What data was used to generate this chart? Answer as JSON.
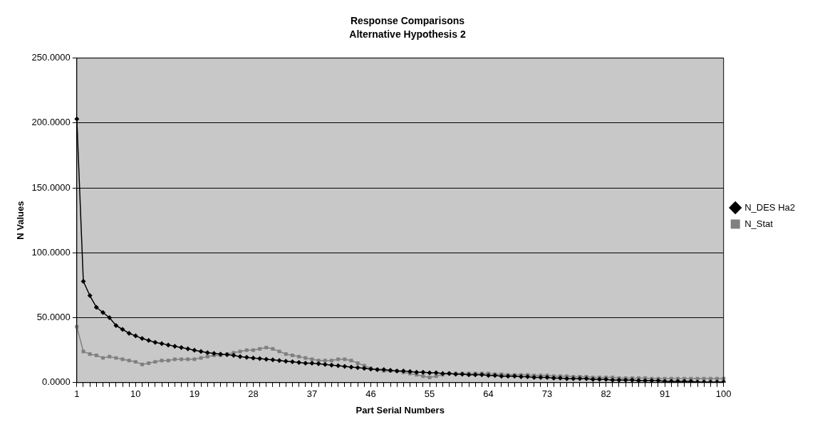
{
  "chart_data": {
    "type": "line",
    "title": "Response Comparisons",
    "subtitle": "Alternative Hypothesis 2",
    "xlabel": "Part Serial Numbers",
    "ylabel": "N Values",
    "categories": [
      "1",
      null,
      null,
      null,
      null,
      null,
      null,
      null,
      null,
      "10",
      null,
      null,
      null,
      null,
      null,
      null,
      null,
      null,
      "19",
      null,
      null,
      null,
      null,
      null,
      null,
      null,
      null,
      "28",
      null,
      null,
      null,
      null,
      null,
      null,
      null,
      null,
      "37",
      null,
      null,
      null,
      null,
      null,
      null,
      null,
      null,
      "46",
      null,
      null,
      null,
      null,
      null,
      null,
      null,
      null,
      "55",
      null,
      null,
      null,
      null,
      null,
      null,
      null,
      null,
      "64",
      null,
      null,
      null,
      null,
      null,
      null,
      null,
      null,
      "73",
      null,
      null,
      null,
      null,
      null,
      null,
      null,
      null,
      "82",
      null,
      null,
      null,
      null,
      null,
      null,
      null,
      null,
      "91",
      null,
      null,
      null,
      null,
      null,
      null,
      null,
      null,
      "100"
    ],
    "series": [
      {
        "name": "N_DES Ha2",
        "color": "#000000",
        "marker": "diamond",
        "values": [
          203,
          78,
          67,
          58,
          54,
          50,
          44,
          41,
          38,
          36,
          34,
          32.5,
          31,
          30,
          29,
          28,
          27,
          26,
          25,
          24,
          23,
          22.5,
          22,
          21.5,
          21,
          20,
          19.5,
          19,
          18.5,
          18,
          17.5,
          17,
          16.5,
          16,
          15.5,
          15,
          15,
          14.5,
          14,
          13.5,
          13,
          12.5,
          12,
          11.5,
          11,
          10.5,
          10,
          10,
          9.5,
          9,
          9,
          8.5,
          8,
          8,
          7.5,
          7.5,
          7,
          7,
          6.5,
          6.5,
          6,
          6,
          6,
          5.5,
          5.5,
          5,
          5,
          5,
          4.5,
          4.5,
          4,
          4,
          4,
          3.5,
          3.5,
          3,
          3,
          3,
          3,
          2.5,
          2.5,
          2.5,
          2,
          2,
          2,
          2,
          1.5,
          1.5,
          1.5,
          1.5,
          1,
          1,
          1,
          1,
          1,
          0.5,
          0.5,
          0.5,
          0.5,
          0.5
        ]
      },
      {
        "name": "N_Stat",
        "color": "#808080",
        "marker": "square",
        "values": [
          43,
          24,
          22,
          21,
          19,
          20,
          19,
          18,
          17,
          16,
          14,
          15,
          16,
          17,
          17,
          18,
          18,
          18,
          18,
          19,
          20,
          21,
          21,
          22,
          23,
          24,
          25,
          25,
          26,
          27,
          26,
          24,
          22,
          21,
          20,
          19,
          18,
          17,
          17,
          17,
          18,
          18,
          17,
          15,
          13,
          11,
          10,
          9,
          9,
          9,
          8,
          7,
          6,
          5,
          4,
          5,
          6,
          7,
          7,
          7,
          7,
          7,
          7,
          7,
          6.5,
          6.5,
          6,
          6,
          6,
          6,
          5.5,
          5.5,
          5.5,
          5,
          5,
          5,
          4.5,
          4.5,
          4.5,
          4,
          4,
          4,
          4,
          3.5,
          3.5,
          3.5,
          3.5,
          3.5,
          3,
          3,
          3,
          3,
          3,
          3,
          3,
          3,
          3,
          3,
          3,
          3
        ]
      }
    ],
    "ylim": [
      0,
      250
    ],
    "yticks": [
      {
        "value": 0,
        "label": "0.0000"
      },
      {
        "value": 50,
        "label": "50.0000"
      },
      {
        "value": 100,
        "label": "100.0000"
      },
      {
        "value": 150,
        "label": "150.0000"
      },
      {
        "value": 200,
        "label": "200.0000"
      },
      {
        "value": 250,
        "label": "250.0000"
      }
    ],
    "grid": "y",
    "legend": "right",
    "line_style": "solid"
  }
}
